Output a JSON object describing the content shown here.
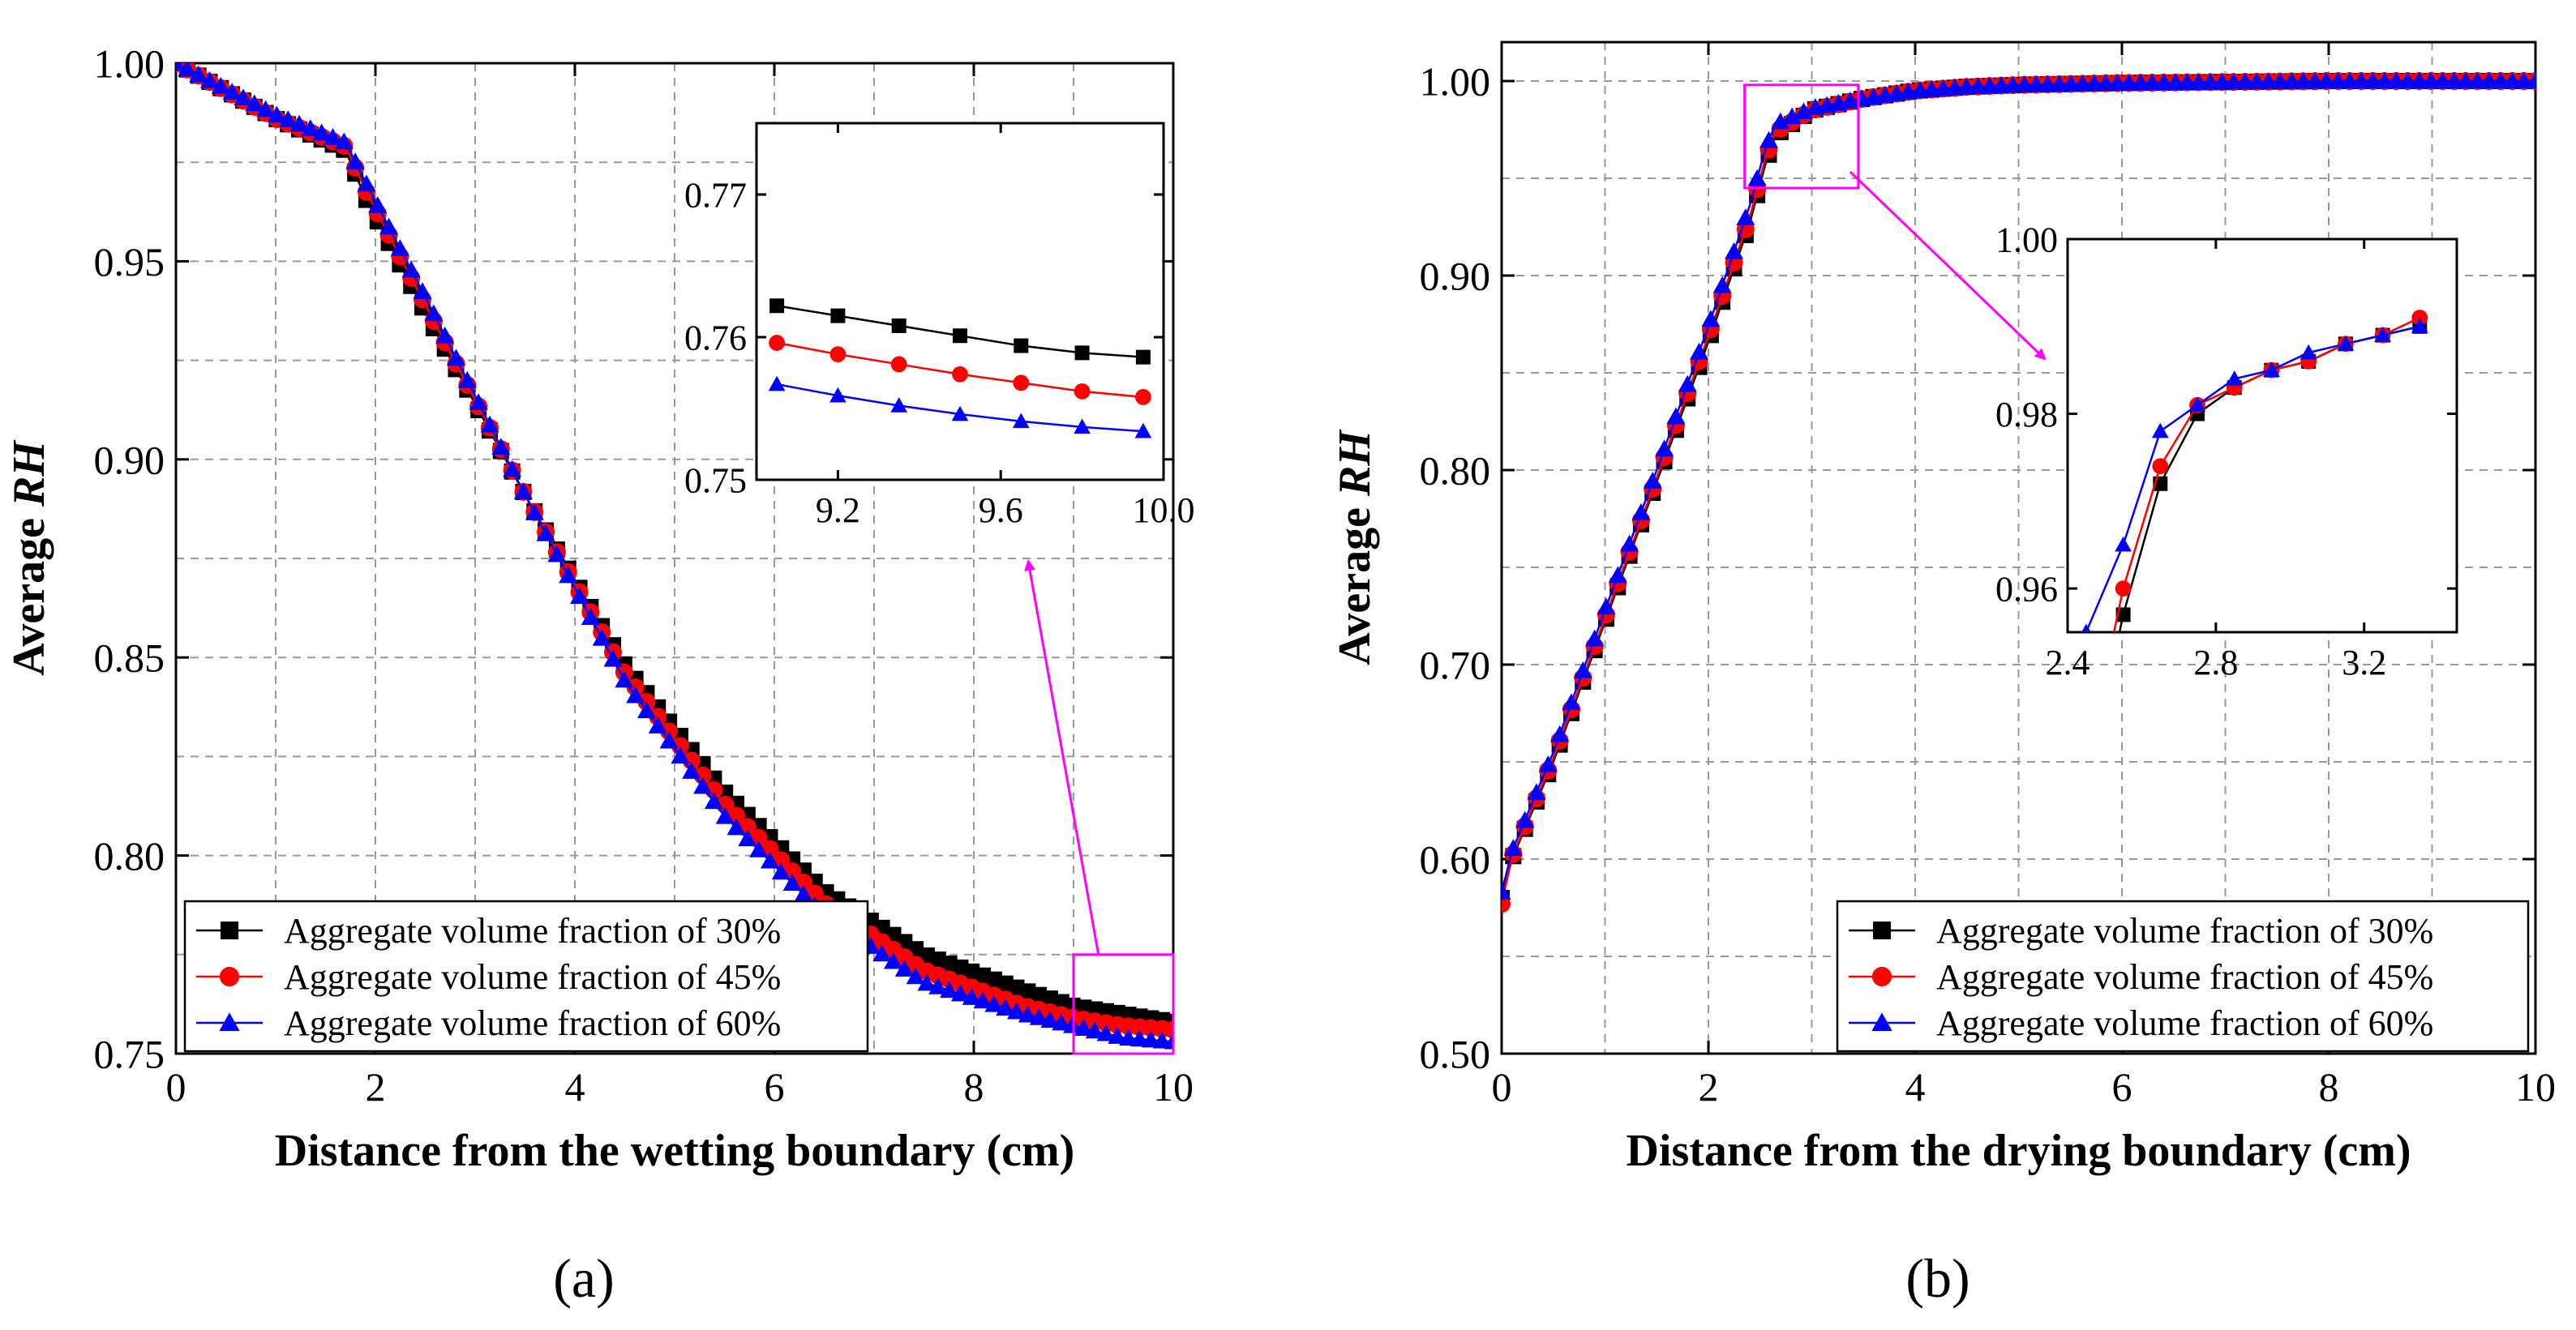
{
  "colors": {
    "s30": "#000000",
    "s45": "#ff0000",
    "s60": "#0000ff",
    "zoom": "#ff00ff",
    "grid": "#999999"
  },
  "chart_data": [
    {
      "panel_label": "(a)",
      "type": "line",
      "xlabel": "Distance from the wetting boundary (cm)",
      "ylabel_prefix": "Average ",
      "ylabel_italic": "RH",
      "xlim": [
        0,
        10
      ],
      "ylim": [
        0.75,
        1.0
      ],
      "xticks": [
        0,
        2,
        4,
        6,
        8,
        10
      ],
      "yticks": [
        0.75,
        0.8,
        0.85,
        0.9,
        0.95,
        1.0
      ],
      "xtick_labels": [
        "0",
        "2",
        "4",
        "6",
        "8",
        "10"
      ],
      "ytick_labels": [
        "0.75",
        "0.80",
        "0.85",
        "0.90",
        "0.95",
        "1.00"
      ],
      "grid": true,
      "legend_position": "bottom-left",
      "series": [
        {
          "name": "Aggregate volume fraction of 30%",
          "marker": "square",
          "x": [
            0,
            1.0,
            1.7,
            1.9,
            2.5,
            3.5,
            4.5,
            5.5,
            6.5,
            7.5,
            8.5,
            9.0,
            9.5,
            10.0
          ],
          "y": [
            1.0,
            0.986,
            0.978,
            0.966,
            0.937,
            0.891,
            0.848,
            0.816,
            0.791,
            0.775,
            0.766,
            0.762,
            0.76,
            0.758
          ]
        },
        {
          "name": "Aggregate volume fraction of 45%",
          "marker": "circle",
          "x": [
            0,
            1.0,
            1.7,
            1.9,
            2.5,
            3.5,
            4.5,
            5.5,
            6.5,
            7.5,
            8.5,
            9.0,
            9.5,
            10.0
          ],
          "y": [
            1.0,
            0.986,
            0.979,
            0.968,
            0.939,
            0.891,
            0.846,
            0.813,
            0.788,
            0.771,
            0.762,
            0.759,
            0.757,
            0.756
          ]
        },
        {
          "name": "Aggregate volume fraction of 60%",
          "marker": "triangle",
          "x": [
            0,
            1.0,
            1.7,
            1.9,
            2.5,
            3.5,
            4.5,
            5.5,
            6.5,
            7.5,
            8.5,
            9.0,
            9.5,
            10.0
          ],
          "y": [
            1.0,
            0.987,
            0.98,
            0.97,
            0.941,
            0.891,
            0.844,
            0.81,
            0.785,
            0.768,
            0.76,
            0.757,
            0.754,
            0.753
          ]
        }
      ],
      "zoom_region": {
        "x": [
          9.0,
          10.0
        ],
        "y": [
          0.75,
          0.775
        ]
      },
      "inset": {
        "xlim": [
          9.0,
          10.0
        ],
        "ylim": [
          0.75,
          0.775
        ],
        "xticks": [
          9.2,
          9.6,
          10.0
        ],
        "yticks": [
          0.75,
          0.76,
          0.77
        ],
        "xtick_labels": [
          "9.2",
          "9.6",
          "10.0"
        ],
        "ytick_labels": [
          "0.75",
          "0.76",
          "0.77"
        ],
        "series": [
          {
            "x": [
              9.05,
              9.2,
              9.35,
              9.5,
              9.65,
              9.8,
              9.95
            ],
            "y": [
              0.7622,
              0.7615,
              0.7608,
              0.7601,
              0.7594,
              0.7589,
              0.7586
            ]
          },
          {
            "x": [
              9.05,
              9.2,
              9.35,
              9.5,
              9.65,
              9.8,
              9.95
            ],
            "y": [
              0.7596,
              0.7588,
              0.7581,
              0.7574,
              0.7568,
              0.7562,
              0.7558
            ]
          },
          {
            "x": [
              9.05,
              9.2,
              9.35,
              9.5,
              9.65,
              9.8,
              9.95
            ],
            "y": [
              0.7567,
              0.7559,
              0.7552,
              0.7546,
              0.7541,
              0.7537,
              0.7534
            ]
          }
        ]
      }
    },
    {
      "panel_label": "(b)",
      "type": "line",
      "xlabel": "Distance from the drying boundary (cm)",
      "ylabel_prefix": "Average ",
      "ylabel_italic": "RH",
      "xlim": [
        0,
        10
      ],
      "ylim": [
        0.5,
        1.02
      ],
      "xticks": [
        0,
        2,
        4,
        6,
        8,
        10
      ],
      "yticks": [
        0.5,
        0.6,
        0.7,
        0.8,
        0.9,
        1.0
      ],
      "xtick_labels": [
        "0",
        "2",
        "4",
        "6",
        "8",
        "10"
      ],
      "ytick_labels": [
        "0.50",
        "0.60",
        "0.70",
        "0.80",
        "0.90",
        "1.00"
      ],
      "grid": true,
      "legend_position": "bottom-right",
      "series": [
        {
          "name": "Aggregate volume fraction of 30%",
          "marker": "square",
          "x": [
            0,
            0.1,
            0.5,
            1.0,
            1.5,
            2.0,
            2.4,
            2.55,
            2.65,
            3.0,
            3.5,
            4.0,
            4.5,
            5.0,
            6.0,
            8.0,
            10.0
          ],
          "y": [
            0.58,
            0.6,
            0.65,
            0.722,
            0.794,
            0.866,
            0.927,
            0.957,
            0.972,
            0.985,
            0.991,
            0.995,
            0.997,
            0.998,
            0.999,
            1.0,
            1.0
          ]
        },
        {
          "name": "Aggregate volume fraction of 45%",
          "marker": "circle",
          "x": [
            0,
            0.1,
            0.5,
            1.0,
            1.5,
            2.0,
            2.4,
            2.55,
            2.65,
            3.0,
            3.5,
            4.0,
            4.5,
            5.0,
            6.0,
            8.0,
            10.0
          ],
          "y": [
            0.577,
            0.601,
            0.652,
            0.724,
            0.796,
            0.869,
            0.93,
            0.96,
            0.974,
            0.985,
            0.991,
            0.995,
            0.997,
            0.998,
            0.999,
            1.0,
            1.0
          ]
        },
        {
          "name": "Aggregate volume fraction of 60%",
          "marker": "triangle",
          "x": [
            0,
            0.1,
            0.5,
            1.0,
            1.5,
            2.0,
            2.4,
            2.55,
            2.65,
            3.0,
            3.5,
            4.0,
            4.5,
            5.0,
            6.0,
            8.0,
            10.0
          ],
          "y": [
            0.583,
            0.604,
            0.655,
            0.728,
            0.8,
            0.874,
            0.936,
            0.965,
            0.978,
            0.986,
            0.991,
            0.995,
            0.997,
            0.998,
            0.999,
            1.0,
            1.0
          ]
        }
      ],
      "zoom_region": {
        "x": [
          2.35,
          3.45
        ],
        "y": [
          0.945,
          0.998
        ]
      },
      "inset": {
        "xlim": [
          2.4,
          3.45
        ],
        "ylim": [
          0.955,
          1.0
        ],
        "xticks": [
          2.4,
          2.8,
          3.2
        ],
        "yticks": [
          0.96,
          0.98,
          1.0
        ],
        "xtick_labels": [
          "2.4",
          "2.8",
          "3.2"
        ],
        "ytick_labels": [
          "0.96",
          "0.98",
          "1.00"
        ],
        "series": [
          {
            "x": [
              2.4,
              2.55,
              2.65,
              2.75,
              2.85,
              2.95,
              3.05,
              3.15,
              3.25,
              3.35
            ],
            "y": [
              0.927,
              0.957,
              0.972,
              0.98,
              0.983,
              0.985,
              0.986,
              0.988,
              0.989,
              0.99
            ]
          },
          {
            "x": [
              2.4,
              2.55,
              2.65,
              2.75,
              2.85,
              2.95,
              3.05,
              3.15,
              3.25,
              3.35
            ],
            "y": [
              0.93,
              0.96,
              0.974,
              0.981,
              0.983,
              0.985,
              0.986,
              0.988,
              0.989,
              0.991
            ]
          },
          {
            "x": [
              2.45,
              2.55,
              2.65,
              2.75,
              2.85,
              2.95,
              3.05,
              3.15,
              3.25,
              3.35
            ],
            "y": [
              0.955,
              0.965,
              0.978,
              0.981,
              0.984,
              0.985,
              0.987,
              0.988,
              0.989,
              0.99
            ]
          }
        ]
      }
    }
  ]
}
